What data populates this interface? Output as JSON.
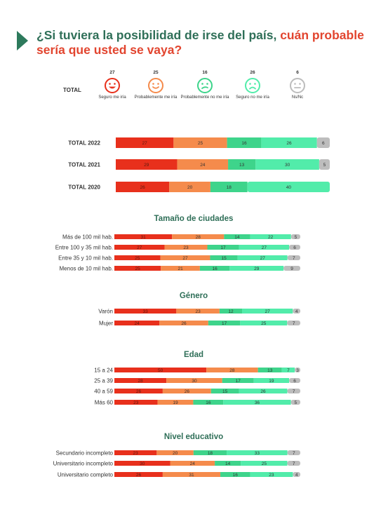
{
  "header": {
    "title_part1": "¿Si tuviera la posibilidad de irse del país, ",
    "title_part2": "cuán probable sería que usted se vaya?"
  },
  "colors": {
    "seguro_me_iria": "#e8301c",
    "probablemente_me_iria": "#f58b4c",
    "probablemente_no_me_iria": "#3ed48b",
    "seguro_no_me_iria": "#52ecaa",
    "ns_nc": "#bdbdbd"
  },
  "legend": {
    "total_label": "TOTAL",
    "items": [
      {
        "value": "27",
        "caption": "Seguro me iría",
        "icon": "happy-face-icon",
        "color": "#e8301c"
      },
      {
        "value": "25",
        "caption": "Probablemente me iría",
        "icon": "smile-face-icon",
        "color": "#f58b4c"
      },
      {
        "value": "16",
        "caption": "Probablemente no me iría",
        "icon": "doubtful-face-icon",
        "color": "#3ed48b"
      },
      {
        "value": "26",
        "caption": "Seguro no me iría",
        "icon": "sad-face-icon",
        "color": "#52ecaa"
      },
      {
        "value": "6",
        "caption": "Ns/Nc",
        "icon": "neutral-face-icon",
        "color": "#bdbdbd"
      }
    ]
  },
  "chart_data": {
    "type": "bar",
    "stacked": true,
    "orientation": "horizontal",
    "series_names": [
      "Seguro me iría",
      "Probablemente me iría",
      "Probablemente no me iría",
      "Seguro no me iría",
      "Ns/Nc"
    ],
    "groups": [
      {
        "title": "",
        "rows": [
          {
            "label": "TOTAL 2022",
            "values": [
              27,
              25,
              16,
              26,
              6
            ]
          },
          {
            "label": "TOTAL 2021",
            "values": [
              29,
              24,
              13,
              30,
              5
            ]
          },
          {
            "label": "TOTAL 2020",
            "values": [
              26,
              20,
              18,
              40,
              null
            ]
          }
        ]
      },
      {
        "title": "Tamaño de ciudades",
        "rows": [
          {
            "label": "Más de 100 mil hab.",
            "values": [
              31,
              28,
              14,
              22,
              5
            ]
          },
          {
            "label": "Entre 100 y 35 mil hab.",
            "values": [
              27,
              23,
              17,
              27,
              6
            ]
          },
          {
            "label": "Entre 35 y 10 mil hab.",
            "values": [
              25,
              27,
              15,
              27,
              7
            ]
          },
          {
            "label": "Menos de 10 mil hab.",
            "values": [
              25,
              21,
              16,
              29,
              9
            ]
          }
        ]
      },
      {
        "title": "Género",
        "rows": [
          {
            "label": "Varón",
            "values": [
              33,
              23,
              12,
              27,
              4
            ]
          },
          {
            "label": "Mujer",
            "values": [
              24,
              26,
              17,
              25,
              7
            ]
          }
        ]
      },
      {
        "title": "Edad",
        "rows": [
          {
            "label": "15 a 24",
            "values": [
              50,
              28,
              13,
              7,
              3
            ]
          },
          {
            "label": "25 a 39",
            "values": [
              28,
              30,
              17,
              19,
              6
            ]
          },
          {
            "label": "40 a 59",
            "values": [
              26,
              26,
              15,
              26,
              7
            ]
          },
          {
            "label": "Más 60",
            "values": [
              23,
              19,
              16,
              36,
              5
            ]
          }
        ]
      },
      {
        "title": "Nivel educativo",
        "rows": [
          {
            "label": "Secundario incompleto",
            "values": [
              23,
              20,
              18,
              33,
              7
            ]
          },
          {
            "label": "Universitario incompleto",
            "values": [
              30,
              24,
              14,
              25,
              7
            ]
          },
          {
            "label": "Universitario completo",
            "values": [
              26,
              31,
              16,
              23,
              4
            ]
          }
        ]
      }
    ]
  }
}
